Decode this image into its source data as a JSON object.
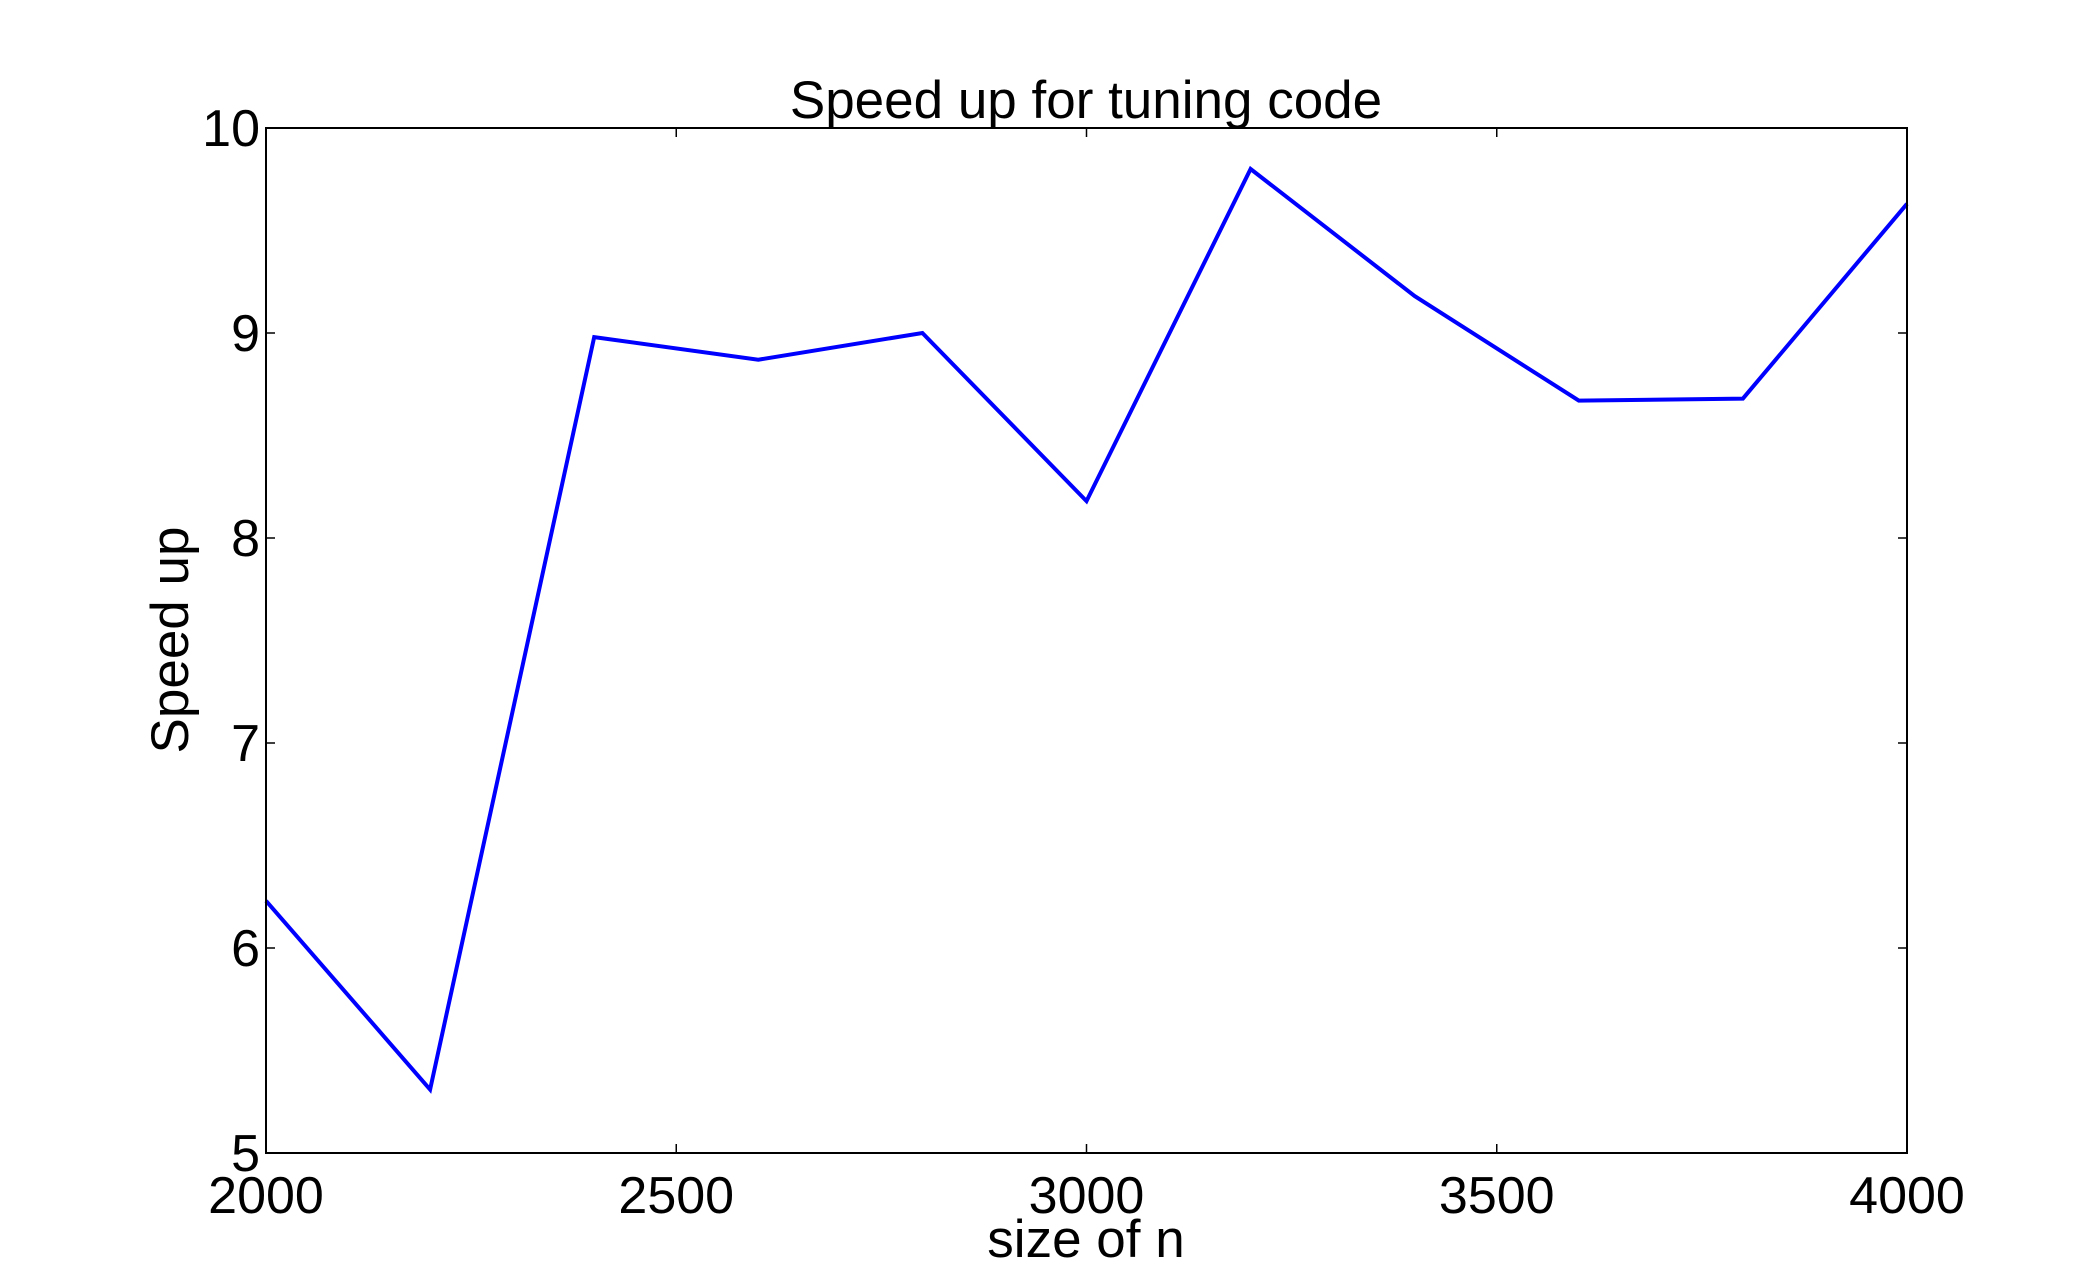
{
  "chart_data": {
    "type": "line",
    "title": "Speed up for tuning code",
    "xlabel": "size of n",
    "ylabel": "Speed up",
    "xlim": [
      2000,
      4000
    ],
    "ylim": [
      5,
      10
    ],
    "xticks": [
      2000,
      2500,
      3000,
      3500,
      4000
    ],
    "yticks": [
      5,
      6,
      7,
      8,
      9,
      10
    ],
    "grid": false,
    "legend": "none",
    "series": [
      {
        "color": "#0000ff",
        "x": [
          2000,
          2200,
          2400,
          2600,
          2800,
          3000,
          3200,
          3400,
          3600,
          3800,
          4000
        ],
        "y": [
          6.23,
          5.31,
          8.98,
          8.87,
          9.0,
          8.18,
          9.8,
          9.18,
          8.67,
          8.68,
          9.63
        ]
      }
    ]
  }
}
